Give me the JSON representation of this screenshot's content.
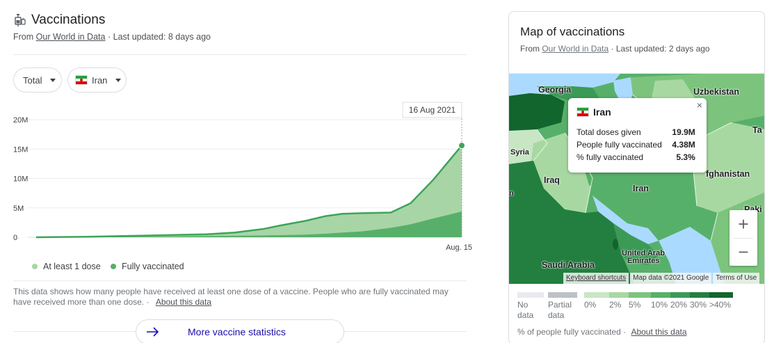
{
  "vaccinations": {
    "title": "Vaccinations",
    "source_prefix": "From",
    "source_link": "Our World in Data",
    "updated": "· Last updated: 8 days ago",
    "metric_select": "Total",
    "country_select": "Iran",
    "tooltip_date": "16 Aug 2021",
    "legend": [
      "At least 1 dose",
      "Fully vaccinated"
    ],
    "note": "This data shows how many people have received at least one dose of a vaccine. People who are fully vaccinated may have received more than one dose.",
    "note_link": "About this data",
    "more_button": "More vaccine statistics"
  },
  "chart_data": {
    "type": "area",
    "title": "",
    "xlabel": "",
    "ylabel": "",
    "ylim": [
      0,
      20
    ],
    "yticks": [
      "0",
      "5M",
      "10M",
      "15M",
      "20M"
    ],
    "yticks_values": [
      0,
      5,
      10,
      15,
      20
    ],
    "x_label_last": "Aug. 15",
    "x": [
      0,
      2,
      4,
      6,
      7,
      8,
      8.6,
      9.5,
      10.2,
      10.8,
      11.5,
      12.5,
      13.2,
      14,
      15
    ],
    "series": [
      {
        "name": "At least 1 dose",
        "color": "#a8d5a6",
        "values": [
          0,
          0.1,
          0.3,
          0.5,
          0.8,
          1.4,
          2.0,
          2.8,
          3.6,
          4.0,
          4.1,
          4.2,
          5.8,
          9.8,
          15.6
        ]
      },
      {
        "name": "Fully vaccinated",
        "color": "#57b06a",
        "values": [
          0,
          0.05,
          0.1,
          0.2,
          0.25,
          0.3,
          0.35,
          0.45,
          0.6,
          0.8,
          1.0,
          1.6,
          2.2,
          3.2,
          4.38
        ]
      }
    ],
    "line_color": "#3da35a",
    "grid": true
  },
  "map": {
    "title": "Map of vaccinations",
    "source_prefix": "From",
    "source_link": "Our World in Data",
    "updated": "· Last updated: 2 days ago",
    "labels": {
      "georgia": "Georgia",
      "uzbekistan": "Uzbekistan",
      "syria": "Syria",
      "iraq": "Iraq",
      "iran": "Iran",
      "afghanistan": "fghanistan",
      "pakistan": "Paki",
      "saudi": "Saudi Arabia",
      "uae_1": "United Arab",
      "uae_2": "Emirates",
      "ta": "Ta",
      "n": "n"
    },
    "tooltip": {
      "country": "Iran",
      "close": "×",
      "rows": [
        {
          "label": "Total doses given",
          "value": "19.9M"
        },
        {
          "label": "People fully vaccinated",
          "value": "4.38M"
        },
        {
          "label": "% fully vaccinated",
          "value": "5.3%"
        }
      ]
    },
    "zoom_in": "+",
    "zoom_out": "−",
    "attribution": [
      "Keyboard shortcuts",
      "Map data ©2021 Google",
      "Terms of Use"
    ],
    "scale": [
      {
        "label1": "No",
        "label2": "data",
        "color": "#e8eaed"
      },
      {
        "label1": "Partial",
        "label2": "data",
        "color": "#bdc1c6"
      },
      {
        "label1": "0%",
        "label2": "",
        "color": "#c8e6c4"
      },
      {
        "label1": "2%",
        "label2": "",
        "color": "#a8d8a2"
      },
      {
        "label1": "5%",
        "label2": "",
        "color": "#7cc47d"
      },
      {
        "label1": "10%",
        "label2": "",
        "color": "#57b06a"
      },
      {
        "label1": "20%",
        "label2": "",
        "color": "#3b9a55"
      },
      {
        "label1": "30%",
        "label2": "",
        "color": "#237f3f"
      },
      {
        "label1": ">40%",
        "label2": "",
        "color": "#11652d"
      }
    ],
    "footer": "% of people fully vaccinated ·",
    "footer_link": "About this data"
  }
}
